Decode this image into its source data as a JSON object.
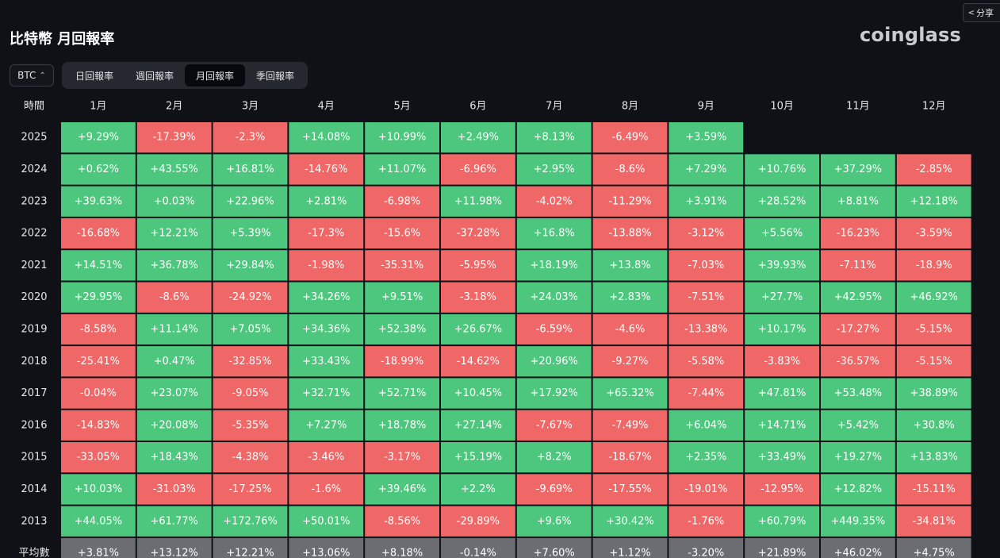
{
  "page_title": "比特幣 月回報率",
  "logo_text": "coinglass",
  "share_label": "分享",
  "coin_selector": {
    "value": "BTC"
  },
  "period_tabs": [
    {
      "label": "日回報率",
      "active": false
    },
    {
      "label": "週回報率",
      "active": false
    },
    {
      "label": "月回報率",
      "active": true
    },
    {
      "label": "季回報率",
      "active": false
    }
  ],
  "colors": {
    "positive": "#4cc77d",
    "negative": "#f06767",
    "average": "#6b6d73",
    "background": "#0f1117"
  },
  "chart_data": {
    "type": "heatmap",
    "corner_label": "時間",
    "columns": [
      "1月",
      "2月",
      "3月",
      "4月",
      "5月",
      "6月",
      "7月",
      "8月",
      "9月",
      "10月",
      "11月",
      "12月"
    ],
    "rows": [
      {
        "label": "2025",
        "values": [
          "+9.29%",
          "-17.39%",
          "-2.3%",
          "+14.08%",
          "+10.99%",
          "+2.49%",
          "+8.13%",
          "-6.49%",
          "+3.59%",
          null,
          null,
          null
        ]
      },
      {
        "label": "2024",
        "values": [
          "+0.62%",
          "+43.55%",
          "+16.81%",
          "-14.76%",
          "+11.07%",
          "-6.96%",
          "+2.95%",
          "-8.6%",
          "+7.29%",
          "+10.76%",
          "+37.29%",
          "-2.85%"
        ]
      },
      {
        "label": "2023",
        "values": [
          "+39.63%",
          "+0.03%",
          "+22.96%",
          "+2.81%",
          "-6.98%",
          "+11.98%",
          "-4.02%",
          "-11.29%",
          "+3.91%",
          "+28.52%",
          "+8.81%",
          "+12.18%"
        ]
      },
      {
        "label": "2022",
        "values": [
          "-16.68%",
          "+12.21%",
          "+5.39%",
          "-17.3%",
          "-15.6%",
          "-37.28%",
          "+16.8%",
          "-13.88%",
          "-3.12%",
          "+5.56%",
          "-16.23%",
          "-3.59%"
        ]
      },
      {
        "label": "2021",
        "values": [
          "+14.51%",
          "+36.78%",
          "+29.84%",
          "-1.98%",
          "-35.31%",
          "-5.95%",
          "+18.19%",
          "+13.8%",
          "-7.03%",
          "+39.93%",
          "-7.11%",
          "-18.9%"
        ]
      },
      {
        "label": "2020",
        "values": [
          "+29.95%",
          "-8.6%",
          "-24.92%",
          "+34.26%",
          "+9.51%",
          "-3.18%",
          "+24.03%",
          "+2.83%",
          "-7.51%",
          "+27.7%",
          "+42.95%",
          "+46.92%"
        ]
      },
      {
        "label": "2019",
        "values": [
          "-8.58%",
          "+11.14%",
          "+7.05%",
          "+34.36%",
          "+52.38%",
          "+26.67%",
          "-6.59%",
          "-4.6%",
          "-13.38%",
          "+10.17%",
          "-17.27%",
          "-5.15%"
        ]
      },
      {
        "label": "2018",
        "values": [
          "-25.41%",
          "+0.47%",
          "-32.85%",
          "+33.43%",
          "-18.99%",
          "-14.62%",
          "+20.96%",
          "-9.27%",
          "-5.58%",
          "-3.83%",
          "-36.57%",
          "-5.15%"
        ]
      },
      {
        "label": "2017",
        "values": [
          "-0.04%",
          "+23.07%",
          "-9.05%",
          "+32.71%",
          "+52.71%",
          "+10.45%",
          "+17.92%",
          "+65.32%",
          "-7.44%",
          "+47.81%",
          "+53.48%",
          "+38.89%"
        ]
      },
      {
        "label": "2016",
        "values": [
          "-14.83%",
          "+20.08%",
          "-5.35%",
          "+7.27%",
          "+18.78%",
          "+27.14%",
          "-7.67%",
          "-7.49%",
          "+6.04%",
          "+14.71%",
          "+5.42%",
          "+30.8%"
        ]
      },
      {
        "label": "2015",
        "values": [
          "-33.05%",
          "+18.43%",
          "-4.38%",
          "-3.46%",
          "-3.17%",
          "+15.19%",
          "+8.2%",
          "-18.67%",
          "+2.35%",
          "+33.49%",
          "+19.27%",
          "+13.83%"
        ]
      },
      {
        "label": "2014",
        "values": [
          "+10.03%",
          "-31.03%",
          "-17.25%",
          "-1.6%",
          "+39.46%",
          "+2.2%",
          "-9.69%",
          "-17.55%",
          "-19.01%",
          "-12.95%",
          "+12.82%",
          "-15.11%"
        ]
      },
      {
        "label": "2013",
        "values": [
          "+44.05%",
          "+61.77%",
          "+172.76%",
          "+50.01%",
          "-8.56%",
          "-29.89%",
          "+9.6%",
          "+30.42%",
          "-1.76%",
          "+60.79%",
          "+449.35%",
          "-34.81%"
        ]
      }
    ],
    "average_row": {
      "label": "平均數",
      "values": [
        "+3.81%",
        "+13.12%",
        "+12.21%",
        "+13.06%",
        "+8.18%",
        "-0.14%",
        "+7.60%",
        "+1.12%",
        "-3.20%",
        "+21.89%",
        "+46.02%",
        "+4.75%"
      ]
    }
  }
}
